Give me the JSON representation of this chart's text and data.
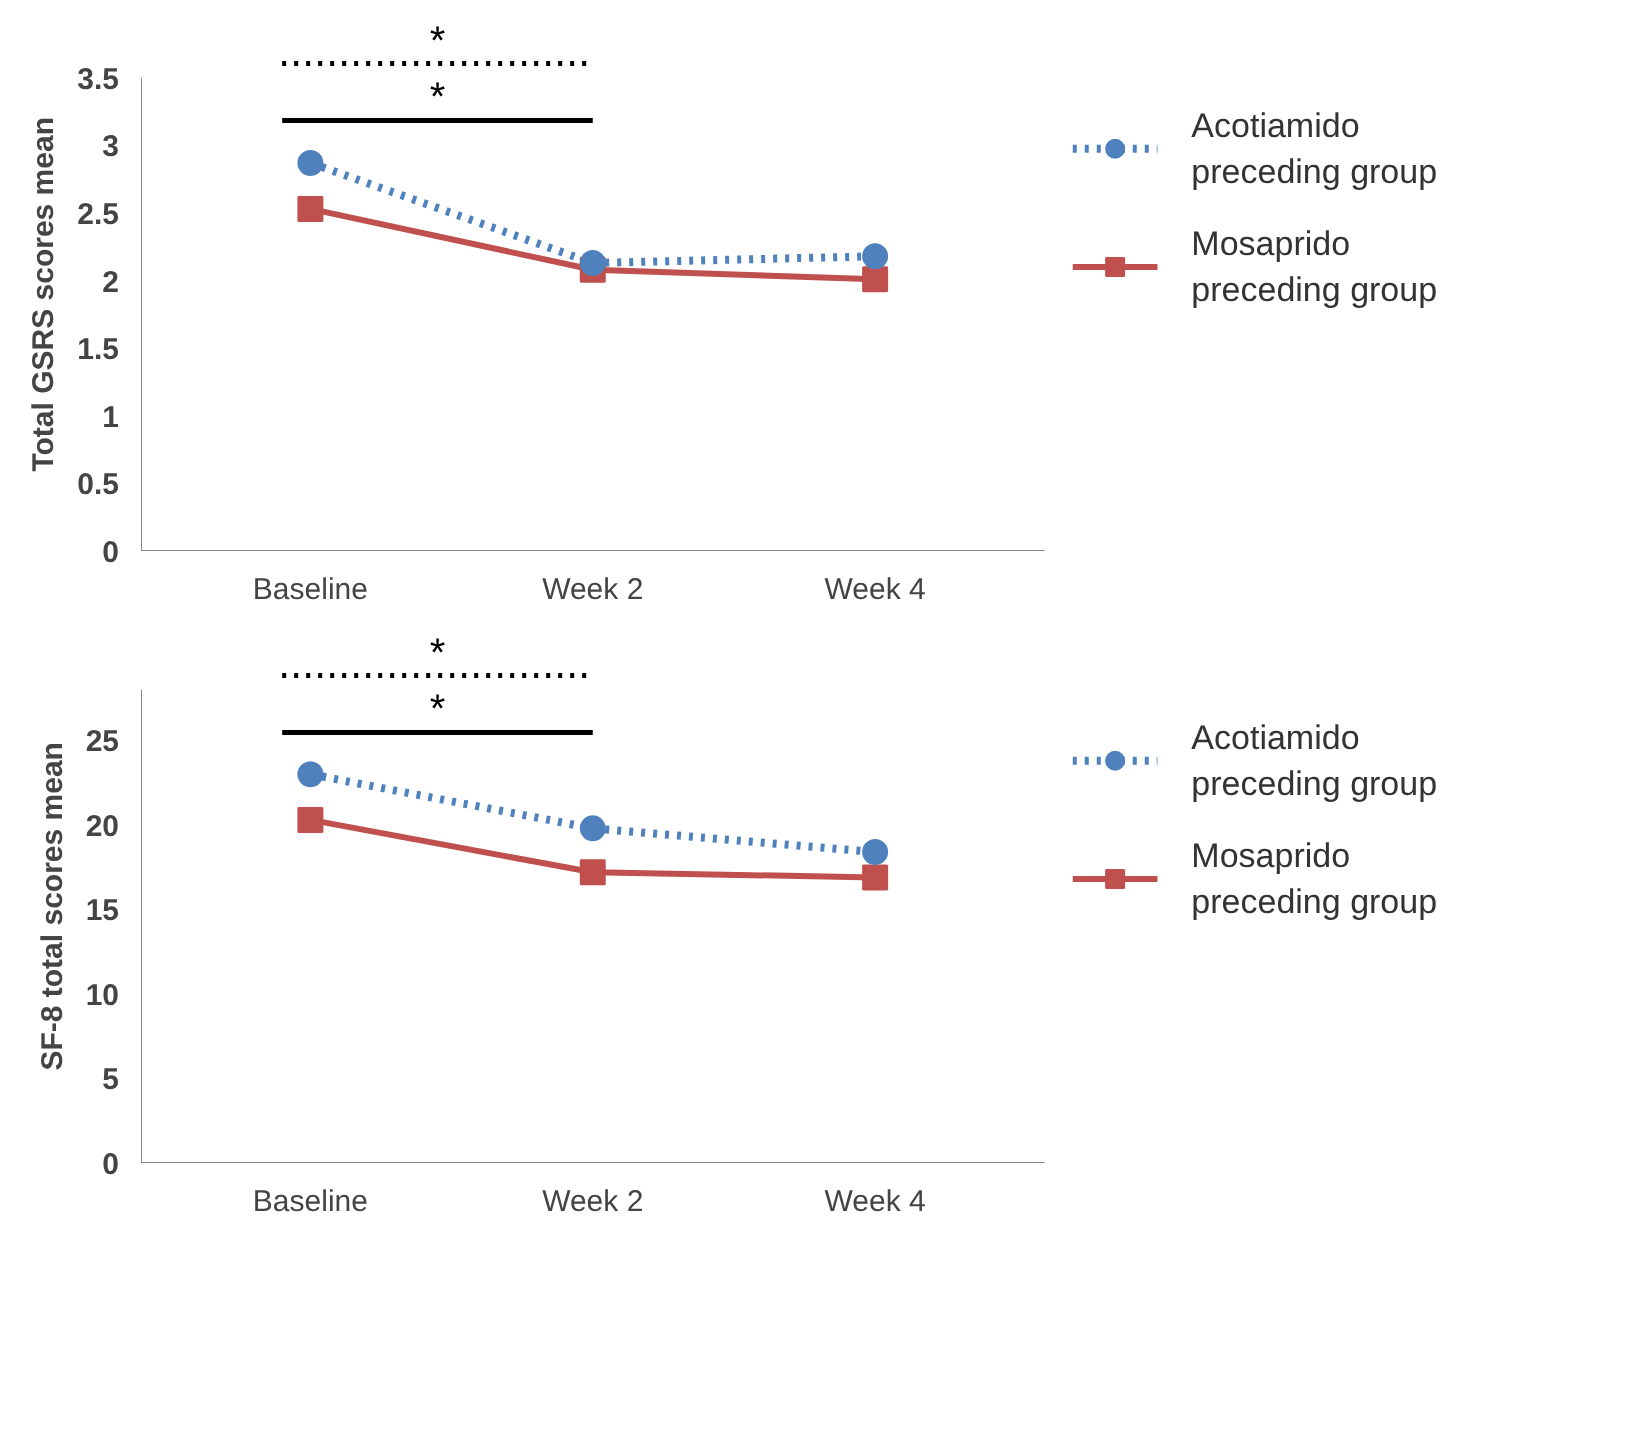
{
  "chart_data": [
    {
      "type": "line",
      "categories": [
        "Baseline",
        "Week 2",
        "Week 4"
      ],
      "ylabel": "Total GSRS scores   mean",
      "ylim": [
        0,
        3.5
      ],
      "yticks": [
        0,
        0.5,
        1,
        1.5,
        2,
        2.5,
        3,
        3.5
      ],
      "grid": false,
      "legend": "right",
      "annotations": [
        "*",
        "*"
      ],
      "series": [
        {
          "name": "Acotiamido preceding group",
          "color": "#4f81bd",
          "values": [
            2.87,
            2.13,
            2.18
          ],
          "marker": "circle",
          "line_style": "dotted"
        },
        {
          "name": "Mosaprido preceding group",
          "color": "#c0504d",
          "values": [
            2.53,
            2.08,
            2.01
          ],
          "marker": "square",
          "line_style": "solid"
        }
      ]
    },
    {
      "type": "line",
      "categories": [
        "Baseline",
        "Week 2",
        "Week 4"
      ],
      "ylabel": "SF-8 total scores   mean",
      "ylim": [
        0,
        28
      ],
      "yticks": [
        0,
        5,
        10,
        15,
        20,
        25
      ],
      "grid": false,
      "legend": "right",
      "annotations": [
        "*",
        "*"
      ],
      "series": [
        {
          "name": "Acotiamido preceding group",
          "color": "#4f81bd",
          "values": [
            23.0,
            19.8,
            18.4
          ],
          "marker": "circle",
          "line_style": "dotted"
        },
        {
          "name": "Mosaprido preceding group",
          "color": "#c0504d",
          "values": [
            20.3,
            17.2,
            16.9
          ],
          "marker": "square",
          "line_style": "solid"
        }
      ]
    }
  ]
}
